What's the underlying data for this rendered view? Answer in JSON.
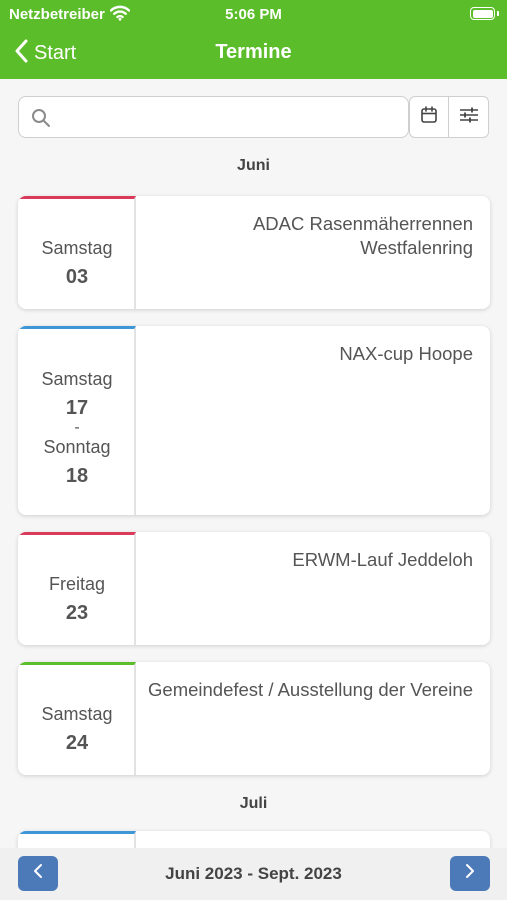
{
  "status_bar": {
    "carrier": "Netzbetreiber",
    "time": "5:06 PM"
  },
  "nav": {
    "back_label": "Start",
    "title": "Termine"
  },
  "search": {
    "value": "",
    "placeholder": ""
  },
  "months": [
    "Juni",
    "Juli"
  ],
  "events": [
    {
      "weekday": "Samstag",
      "day": "03",
      "title": "ADAC Rasenmäherrennen Westfalenring",
      "accent": "#d93a5a"
    },
    {
      "weekday": "Samstag",
      "day": "17",
      "separator": "-",
      "end_weekday": "Sonntag",
      "end_day": "18",
      "title": "NAX-cup Hoope",
      "accent": "#3d96d6"
    },
    {
      "weekday": "Freitag",
      "day": "23",
      "title": "ERWM-Lauf Jeddeloh",
      "accent": "#d93a5a"
    },
    {
      "weekday": "Samstag",
      "day": "24",
      "title": "Gemeindefest / Ausstellung der Vereine",
      "accent": "#5cbd2a"
    },
    {
      "accent": "#3d96d6"
    }
  ],
  "footer": {
    "range": "Juni 2023 - Sept. 2023"
  },
  "icons": {
    "back": "chevron-left-icon",
    "search": "search-icon",
    "calendar": "calendar-icon",
    "filter": "sliders-icon",
    "prev": "chevron-left-icon",
    "next": "chevron-right-icon",
    "wifi": "wifi-icon",
    "battery": "battery-icon"
  },
  "colors": {
    "header": "#5cbd2a",
    "pager_button": "#4c7ab8",
    "background": "#f6f6f6"
  }
}
